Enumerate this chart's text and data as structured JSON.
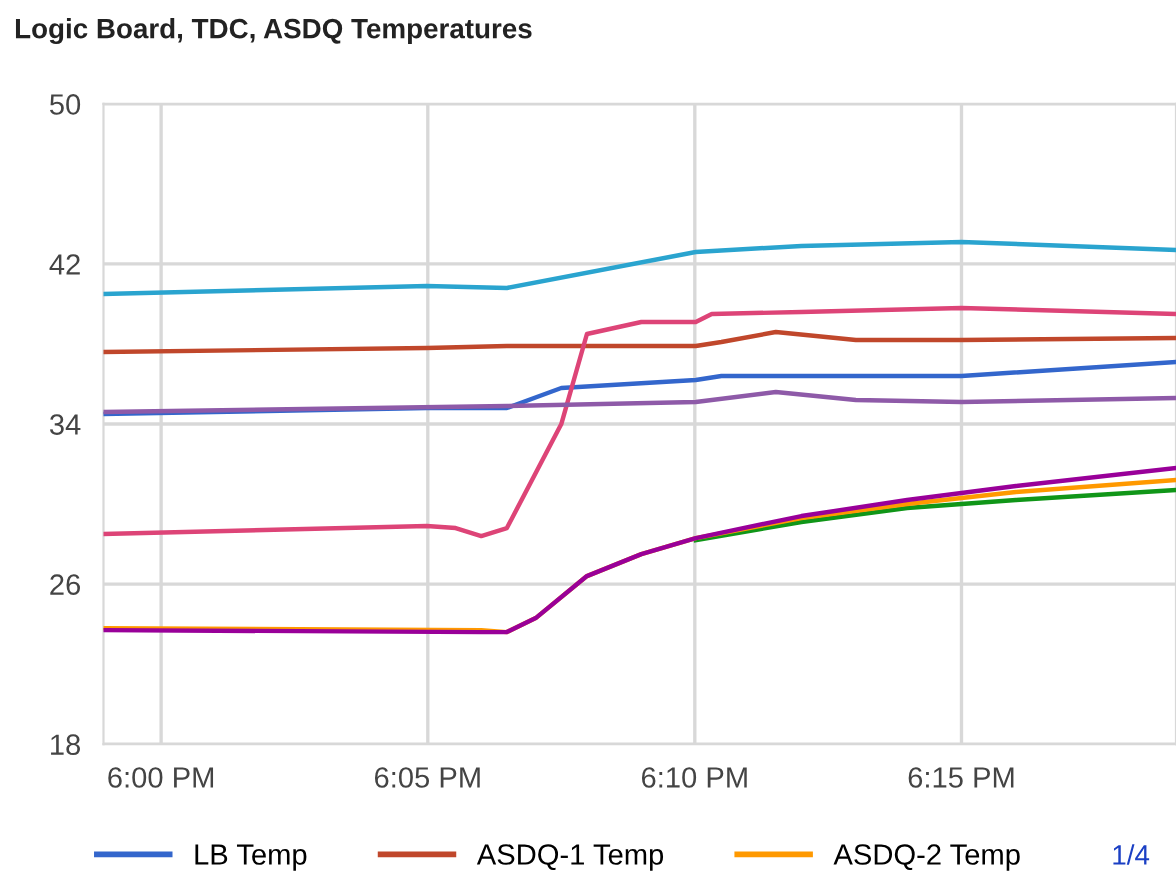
{
  "chart_data": {
    "type": "line",
    "title": "Logic Board, TDC, ASDQ Temperatures",
    "xlim": [
      17.982,
      18.317
    ],
    "xticks": [
      {
        "value": 18,
        "label": "6:00 PM"
      },
      {
        "value": 18.0833,
        "label": "6:05 PM"
      },
      {
        "value": 18.1667,
        "label": "6:10 PM"
      },
      {
        "value": 18.25,
        "label": "6:15 PM"
      }
    ],
    "ylim": [
      18,
      50
    ],
    "yticks": [
      18,
      26,
      34,
      42,
      50
    ],
    "grid": true,
    "legend": "bottom",
    "annotations": [
      "1/4"
    ],
    "series": [
      {
        "color": "#2aa4cf",
        "x": [
          17.982,
          18.083,
          18.108,
          18.167,
          18.2,
          18.25,
          18.317
        ],
        "values": [
          40.5,
          40.9,
          40.8,
          42.6,
          42.9,
          43.1,
          42.7
        ]
      },
      {
        "name": "LB Temp",
        "color": "#3366cc",
        "x": [
          17.982,
          18.083,
          18.108,
          18.125,
          18.167,
          18.175,
          18.25,
          18.317
        ],
        "values": [
          34.5,
          34.8,
          34.8,
          35.8,
          36.2,
          36.4,
          36.4,
          37.1
        ]
      },
      {
        "name": "ASDQ-1 Temp",
        "color": "#c0472b",
        "x": [
          17.982,
          18.083,
          18.108,
          18.167,
          18.175,
          18.192,
          18.217,
          18.25,
          18.317
        ],
        "values": [
          37.6,
          37.8,
          37.9,
          37.9,
          38.1,
          38.6,
          38.2,
          38.2,
          38.3
        ]
      },
      {
        "color": "#dd4477",
        "x": [
          17.982,
          18.083,
          18.092,
          18.1,
          18.108,
          18.125,
          18.133,
          18.15,
          18.167,
          18.172,
          18.2,
          18.25,
          18.317
        ],
        "values": [
          28.5,
          28.9,
          28.8,
          28.4,
          28.8,
          34.0,
          38.5,
          39.1,
          39.1,
          39.5,
          39.6,
          39.8,
          39.5
        ]
      },
      {
        "color": "#8e5aa8",
        "x": [
          17.982,
          18.108,
          18.167,
          18.192,
          18.217,
          18.25,
          18.317
        ],
        "values": [
          34.6,
          34.9,
          35.1,
          35.6,
          35.2,
          35.1,
          35.3
        ]
      },
      {
        "color": "#109618",
        "x": [
          18.167,
          18.2,
          18.233,
          18.267,
          18.317
        ],
        "values": [
          28.2,
          29.1,
          29.8,
          30.2,
          30.7
        ]
      },
      {
        "name": "ASDQ-2 Temp",
        "color": "#ff9900",
        "x": [
          17.982,
          18.1,
          18.108,
          18.117,
          18.133,
          18.15,
          18.167,
          18.2,
          18.233,
          18.267,
          18.317
        ],
        "values": [
          23.8,
          23.7,
          23.6,
          24.3,
          26.4,
          27.5,
          28.3,
          29.3,
          30.0,
          30.6,
          31.2
        ]
      },
      {
        "color": "#990099",
        "x": [
          17.982,
          18.1,
          18.108,
          18.117,
          18.133,
          18.15,
          18.167,
          18.2,
          18.233,
          18.267,
          18.317
        ],
        "values": [
          23.7,
          23.6,
          23.6,
          24.3,
          26.4,
          27.5,
          28.3,
          29.4,
          30.2,
          30.9,
          31.8
        ]
      }
    ]
  }
}
